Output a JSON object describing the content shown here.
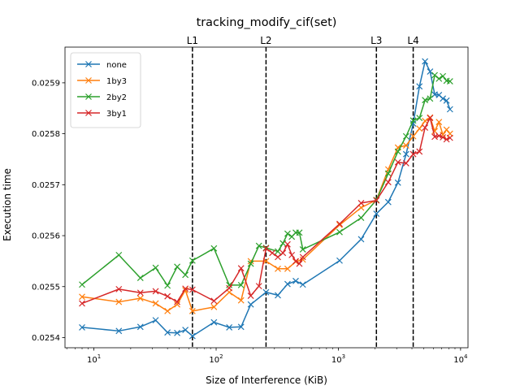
{
  "chart_data": {
    "type": "line",
    "title": "tracking_modify_cif(set)",
    "xlabel": "Size of Interference (KiB)",
    "ylabel": "Execution time",
    "xscale": "log",
    "xlim": [
      5.8,
      11500
    ],
    "ylim": [
      0.02538,
      0.02597
    ],
    "x_ticks": [
      {
        "value": 10,
        "base": "10",
        "exp": "1"
      },
      {
        "value": 100,
        "base": "10",
        "exp": "2"
      },
      {
        "value": 1000,
        "base": "10",
        "exp": "3"
      },
      {
        "value": 10000,
        "base": "10",
        "exp": "4"
      }
    ],
    "y_ticks": [
      {
        "value": 0.0254,
        "label": "0.0254"
      },
      {
        "value": 0.0255,
        "label": "0.0255"
      },
      {
        "value": 0.0256,
        "label": "0.0256"
      },
      {
        "value": 0.0257,
        "label": "0.0257"
      },
      {
        "value": 0.0258,
        "label": "0.0258"
      },
      {
        "value": 0.0259,
        "label": "0.0259"
      }
    ],
    "cache_lines": [
      {
        "label": "L1",
        "x": 64
      },
      {
        "label": "L2",
        "x": 256
      },
      {
        "label": "L3",
        "x": 2048
      },
      {
        "label": "L4",
        "x": 4096
      }
    ],
    "legend_position": "upper-left",
    "series": [
      {
        "name": "none",
        "color": "#1f77b4",
        "x": [
          8,
          16,
          24,
          32,
          40,
          48,
          56,
          64,
          96,
          128,
          160,
          192,
          256,
          320,
          384,
          448,
          512,
          1024,
          1536,
          2048,
          2560,
          3072,
          3584,
          4096,
          4608,
          5120,
          5632,
          6144,
          6656,
          7168,
          7680,
          8192
        ],
        "y": [
          0.02542,
          0.025413,
          0.025421,
          0.025434,
          0.02541,
          0.025409,
          0.025415,
          0.025403,
          0.02543,
          0.02542,
          0.025421,
          0.025465,
          0.025489,
          0.025483,
          0.025505,
          0.025511,
          0.025504,
          0.025551,
          0.025593,
          0.025643,
          0.025666,
          0.025704,
          0.02576,
          0.02582,
          0.025893,
          0.025942,
          0.025922,
          0.025877,
          0.025876,
          0.025869,
          0.025865,
          0.025848
        ]
      },
      {
        "name": "1by3",
        "color": "#ff7f0e",
        "x": [
          8,
          16,
          24,
          32,
          40,
          48,
          56,
          64,
          96,
          128,
          160,
          192,
          256,
          320,
          384,
          448,
          512,
          1024,
          1536,
          2048,
          2560,
          3072,
          3584,
          4096,
          4608,
          5120,
          5632,
          6144,
          6656,
          7168,
          7680,
          8192
        ],
        "y": [
          0.02548,
          0.02547,
          0.025477,
          0.025467,
          0.025452,
          0.025465,
          0.025493,
          0.025452,
          0.02546,
          0.025489,
          0.025473,
          0.02555,
          0.02555,
          0.025535,
          0.025535,
          0.025549,
          0.025553,
          0.025621,
          0.025655,
          0.02567,
          0.02573,
          0.025773,
          0.025777,
          0.025795,
          0.02581,
          0.025825,
          0.025832,
          0.025805,
          0.025823,
          0.025798,
          0.025808,
          0.0258
        ]
      },
      {
        "name": "2by2",
        "color": "#2ca02c",
        "x": [
          8,
          16,
          24,
          32,
          40,
          48,
          56,
          64,
          96,
          128,
          160,
          192,
          224,
          256,
          320,
          352,
          384,
          416,
          448,
          480,
          512,
          1024,
          1536,
          2048,
          2560,
          3072,
          3584,
          4096,
          4608,
          5120,
          5632,
          6144,
          6656,
          7168,
          7680,
          8192
        ],
        "y": [
          0.025504,
          0.025562,
          0.025517,
          0.025537,
          0.025502,
          0.025539,
          0.025523,
          0.025551,
          0.025575,
          0.025503,
          0.025503,
          0.025545,
          0.02558,
          0.025576,
          0.025569,
          0.025585,
          0.025604,
          0.025598,
          0.025606,
          0.025606,
          0.025573,
          0.025607,
          0.025635,
          0.02567,
          0.025722,
          0.025765,
          0.025795,
          0.025826,
          0.025831,
          0.025866,
          0.025869,
          0.025915,
          0.025908,
          0.025913,
          0.025904,
          0.025903
        ]
      },
      {
        "name": "3by1",
        "color": "#d62728",
        "x": [
          8,
          16,
          24,
          32,
          40,
          48,
          56,
          64,
          96,
          128,
          160,
          192,
          224,
          256,
          288,
          320,
          352,
          384,
          416,
          448,
          480,
          512,
          1024,
          1536,
          2048,
          2560,
          3072,
          3584,
          4096,
          4608,
          5120,
          5632,
          6144,
          6656,
          7168,
          7680,
          8192
        ],
        "y": [
          0.025467,
          0.025495,
          0.025488,
          0.025491,
          0.025481,
          0.02547,
          0.025496,
          0.025494,
          0.025472,
          0.025497,
          0.025536,
          0.025482,
          0.025501,
          0.025575,
          0.025566,
          0.025558,
          0.025566,
          0.025583,
          0.025562,
          0.02555,
          0.025545,
          0.025558,
          0.025623,
          0.025664,
          0.025669,
          0.025705,
          0.025744,
          0.025742,
          0.02576,
          0.025765,
          0.025812,
          0.025831,
          0.025794,
          0.025796,
          0.025793,
          0.025789,
          0.025792
        ]
      }
    ]
  }
}
